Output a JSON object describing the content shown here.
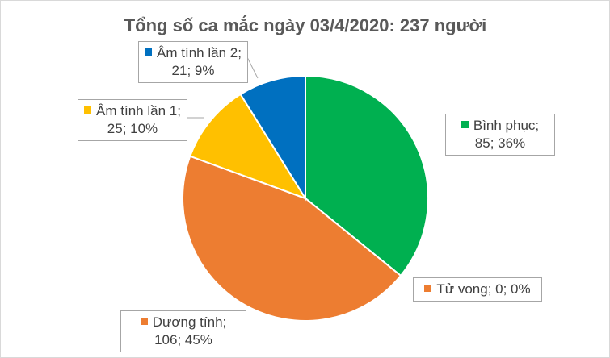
{
  "chart_data": {
    "type": "pie",
    "title": "Tổng số ca mắc ngày 03/4/2020:  237 người",
    "values": [
      85,
      0,
      106,
      25,
      21
    ],
    "value_labels": [
      "Bình phục; 85; 36%",
      "Tử vong; 0; 0%",
      "Dương tính; 106; 45%",
      "Âm tính lần 1; 25; 10%",
      "Âm tính lần 2; 21; 9%"
    ],
    "colors": [
      "#00b050",
      "#ed7d31",
      "#ed7d31",
      "#ffc000",
      "#0070c0"
    ]
  }
}
